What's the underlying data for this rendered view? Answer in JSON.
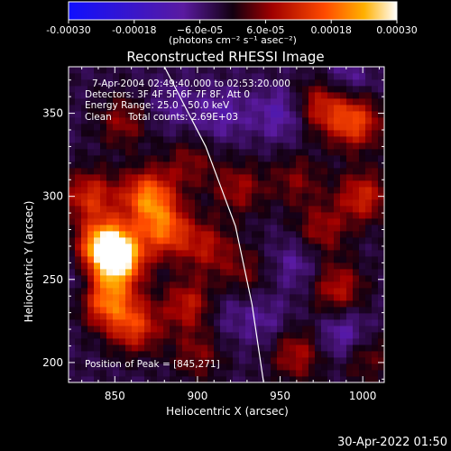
{
  "chart_data": {
    "type": "heatmap",
    "title": "Reconstructed RHESSI Image",
    "xlabel": "Heliocentric X (arcsec)",
    "ylabel": "Heliocentric Y (arcsec)",
    "xlim": [
      822,
      1013
    ],
    "ylim": [
      188,
      378
    ],
    "x_ticks": [
      850,
      900,
      950,
      1000
    ],
    "y_ticks": [
      200,
      250,
      300,
      350
    ],
    "colorbar": {
      "range": [
        -0.0003,
        0.0003
      ],
      "tick_values": [
        -0.0003,
        -0.00018,
        -6e-05,
        6e-05,
        0.00018,
        0.0003
      ],
      "tick_labels": [
        "-0.00030",
        "-0.00018",
        "−6.0e-05",
        "6.0e-05",
        "0.00018",
        "0.00030"
      ],
      "unit_label": "(photons cm⁻² s⁻¹ asec⁻²)"
    },
    "annotations": {
      "time_range": "7-Apr-2004 02:49:40.000 to 02:53:20.000",
      "detectors": "Detectors: 3F 4F 5F 6F 7F 8F, Att 0",
      "energy": "Energy Range: 25.0 - 50.0 keV",
      "clean": "Clean",
      "total_counts": "Total counts: 2.69E+03",
      "peak": "Position of Peak = [845,271]"
    },
    "limb_curve": [
      [
        880,
        378
      ],
      [
        905,
        330
      ],
      [
        923,
        282
      ],
      [
        933,
        235
      ],
      [
        940,
        188
      ]
    ],
    "sources": [
      {
        "x": 845,
        "y": 270,
        "value": 0.0003
      },
      {
        "x": 852,
        "y": 262,
        "value": 0.00025
      },
      {
        "x": 870,
        "y": 300,
        "value": 0.00022
      },
      {
        "x": 880,
        "y": 280,
        "value": 0.00019
      },
      {
        "x": 845,
        "y": 238,
        "value": 0.00021
      },
      {
        "x": 862,
        "y": 222,
        "value": 0.00016
      },
      {
        "x": 895,
        "y": 235,
        "value": 0.00013
      },
      {
        "x": 905,
        "y": 270,
        "value": 0.00011
      },
      {
        "x": 835,
        "y": 300,
        "value": 0.00015
      },
      {
        "x": 855,
        "y": 345,
        "value": 9e-05
      },
      {
        "x": 895,
        "y": 320,
        "value": 8e-05
      },
      {
        "x": 925,
        "y": 305,
        "value": 0.0001
      },
      {
        "x": 928,
        "y": 255,
        "value": 7e-05
      },
      {
        "x": 960,
        "y": 310,
        "value": 8e-05
      },
      {
        "x": 975,
        "y": 355,
        "value": 0.00013
      },
      {
        "x": 995,
        "y": 345,
        "value": 0.00018
      },
      {
        "x": 1000,
        "y": 300,
        "value": 0.00014
      },
      {
        "x": 975,
        "y": 280,
        "value": 0.0001
      },
      {
        "x": 985,
        "y": 245,
        "value": 0.00012
      },
      {
        "x": 960,
        "y": 205,
        "value": 0.00011
      },
      {
        "x": 900,
        "y": 205,
        "value": 8e-05
      },
      {
        "x": 1000,
        "y": 205,
        "value": 9e-05
      },
      {
        "x": 960,
        "y": 260,
        "value": -6e-05
      },
      {
        "x": 915,
        "y": 350,
        "value": -7e-05
      },
      {
        "x": 950,
        "y": 350,
        "value": -8e-05
      },
      {
        "x": 990,
        "y": 370,
        "value": -6e-05
      },
      {
        "x": 990,
        "y": 215,
        "value": -0.0001
      },
      {
        "x": 940,
        "y": 225,
        "value": -5e-05
      },
      {
        "x": 830,
        "y": 250,
        "value": -6e-05
      },
      {
        "x": 885,
        "y": 355,
        "value": -5e-05
      },
      {
        "x": 915,
        "y": 230,
        "value": -4e-05
      }
    ]
  },
  "footer": {
    "timestamp": "30-Apr-2022 01:50"
  }
}
